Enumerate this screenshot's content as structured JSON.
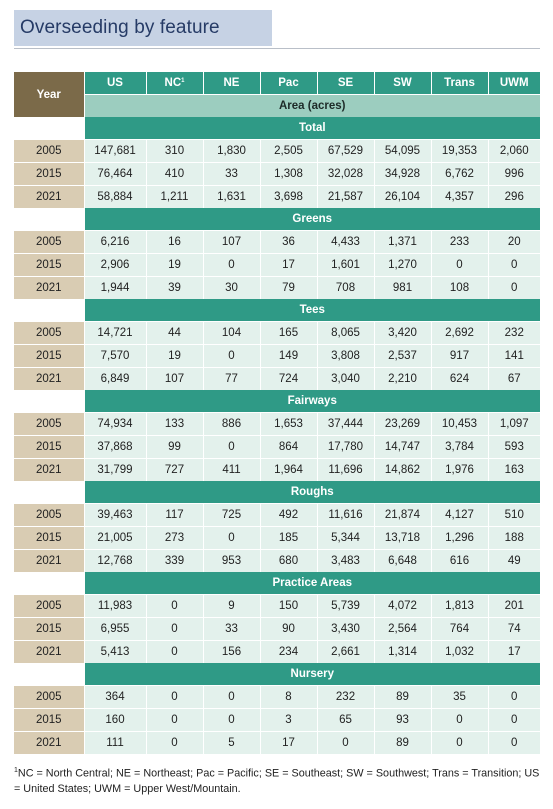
{
  "title": "Overseeding by feature",
  "table": {
    "year_header": "Year",
    "columns": [
      "US",
      "NC",
      "NE",
      "Pac",
      "SE",
      "SW",
      "Trans",
      "UWM"
    ],
    "nc_footnote_mark": "1",
    "unit_header": "Area (acres)",
    "sections": [
      {
        "name": "Total",
        "rows": [
          {
            "year": "2005",
            "values": [
              "147,681",
              "310",
              "1,830",
              "2,505",
              "67,529",
              "54,095",
              "19,353",
              "2,060"
            ]
          },
          {
            "year": "2015",
            "values": [
              "76,464",
              "410",
              "33",
              "1,308",
              "32,028",
              "34,928",
              "6,762",
              "996"
            ]
          },
          {
            "year": "2021",
            "values": [
              "58,884",
              "1,211",
              "1,631",
              "3,698",
              "21,587",
              "26,104",
              "4,357",
              "296"
            ]
          }
        ]
      },
      {
        "name": "Greens",
        "rows": [
          {
            "year": "2005",
            "values": [
              "6,216",
              "16",
              "107",
              "36",
              "4,433",
              "1,371",
              "233",
              "20"
            ]
          },
          {
            "year": "2015",
            "values": [
              "2,906",
              "19",
              "0",
              "17",
              "1,601",
              "1,270",
              "0",
              "0"
            ]
          },
          {
            "year": "2021",
            "values": [
              "1,944",
              "39",
              "30",
              "79",
              "708",
              "981",
              "108",
              "0"
            ]
          }
        ]
      },
      {
        "name": "Tees",
        "rows": [
          {
            "year": "2005",
            "values": [
              "14,721",
              "44",
              "104",
              "165",
              "8,065",
              "3,420",
              "2,692",
              "232"
            ]
          },
          {
            "year": "2015",
            "values": [
              "7,570",
              "19",
              "0",
              "149",
              "3,808",
              "2,537",
              "917",
              "141"
            ]
          },
          {
            "year": "2021",
            "values": [
              "6,849",
              "107",
              "77",
              "724",
              "3,040",
              "2,210",
              "624",
              "67"
            ]
          }
        ]
      },
      {
        "name": "Fairways",
        "rows": [
          {
            "year": "2005",
            "values": [
              "74,934",
              "133",
              "886",
              "1,653",
              "37,444",
              "23,269",
              "10,453",
              "1,097"
            ]
          },
          {
            "year": "2015",
            "values": [
              "37,868",
              "99",
              "0",
              "864",
              "17,780",
              "14,747",
              "3,784",
              "593"
            ]
          },
          {
            "year": "2021",
            "values": [
              "31,799",
              "727",
              "411",
              "1,964",
              "11,696",
              "14,862",
              "1,976",
              "163"
            ]
          }
        ]
      },
      {
        "name": "Roughs",
        "rows": [
          {
            "year": "2005",
            "values": [
              "39,463",
              "117",
              "725",
              "492",
              "11,616",
              "21,874",
              "4,127",
              "510"
            ]
          },
          {
            "year": "2015",
            "values": [
              "21,005",
              "273",
              "0",
              "185",
              "5,344",
              "13,718",
              "1,296",
              "188"
            ]
          },
          {
            "year": "2021",
            "values": [
              "12,768",
              "339",
              "953",
              "680",
              "3,483",
              "6,648",
              "616",
              "49"
            ]
          }
        ]
      },
      {
        "name": "Practice Areas",
        "rows": [
          {
            "year": "2005",
            "values": [
              "11,983",
              "0",
              "9",
              "150",
              "5,739",
              "4,072",
              "1,813",
              "201"
            ]
          },
          {
            "year": "2015",
            "values": [
              "6,955",
              "0",
              "33",
              "90",
              "3,430",
              "2,564",
              "764",
              "74"
            ]
          },
          {
            "year": "2021",
            "values": [
              "5,413",
              "0",
              "156",
              "234",
              "2,661",
              "1,314",
              "1,032",
              "17"
            ]
          }
        ]
      },
      {
        "name": "Nursery",
        "rows": [
          {
            "year": "2005",
            "values": [
              "364",
              "0",
              "0",
              "8",
              "232",
              "89",
              "35",
              "0"
            ]
          },
          {
            "year": "2015",
            "values": [
              "160",
              "0",
              "0",
              "3",
              "65",
              "93",
              "0",
              "0"
            ]
          },
          {
            "year": "2021",
            "values": [
              "111",
              "0",
              "5",
              "17",
              "0",
              "89",
              "0",
              "0"
            ]
          }
        ]
      }
    ]
  },
  "footnote": {
    "mark": "1",
    "text": "NC = North Central; NE = Northeast; Pac = Pacific; SE = Southeast; SW = Southwest; Trans = Transition; US = United States; UWM = Upper West/Mountain."
  }
}
